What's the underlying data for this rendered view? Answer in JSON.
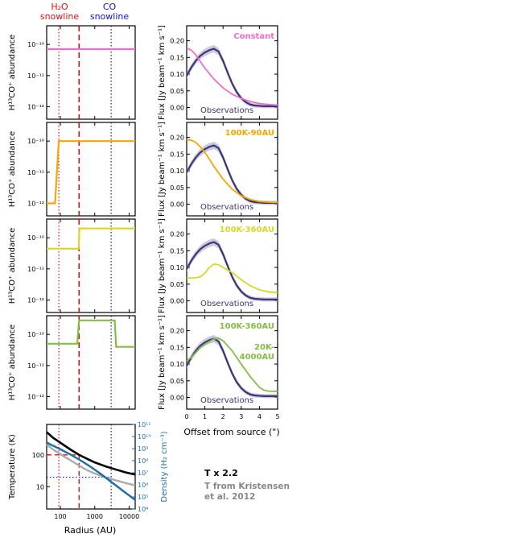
{
  "chart_data": {
    "type": "line",
    "header": {
      "h2o_label_top": "H₂O",
      "h2o_label_bottom": "snowline",
      "co_label_top": "CO",
      "co_label_bottom": "snowline",
      "h2o_color": "#dd1111",
      "co_color": "#1111cc"
    },
    "abundance_panels": {
      "ylabel": "H¹³CO⁺ abundance",
      "ylim_log10": [
        -12.4,
        -9.4
      ],
      "yticks": [
        {
          "v": -10,
          "label": "10⁻¹⁰"
        },
        {
          "v": -11,
          "label": "10⁻¹¹"
        },
        {
          "v": -12,
          "label": "10⁻¹²"
        }
      ],
      "xlim_au": [
        40,
        15000
      ],
      "h2o_snowline_au": 90,
      "co_snowline_au": 3000,
      "dashed_line_au": 350,
      "panels": [
        {
          "name": "Constant",
          "color": "#f06ec8",
          "x": [
            40,
            15000
          ],
          "y": [
            -10.15,
            -10.15
          ]
        },
        {
          "name": "100K-90AU",
          "color": "#f5a700",
          "x": [
            40,
            70,
            90,
            15000
          ],
          "y": [
            -12,
            -12,
            -10,
            -10
          ]
        },
        {
          "name": "100K-360AU",
          "color": "#d8d82a",
          "x": [
            40,
            340,
            360,
            15000
          ],
          "y": [
            -10.35,
            -10.35,
            -9.7,
            -9.7
          ]
        },
        {
          "name": "100K-360AU / 20K-4000AU",
          "color": "#82be45",
          "x": [
            40,
            310,
            350,
            3800,
            4200,
            15000
          ],
          "y": [
            -10.3,
            -10.3,
            -9.55,
            -9.55,
            -10.4,
            -10.4
          ]
        }
      ]
    },
    "flux_panels": {
      "ylabel": "Flux [Jy beam⁻¹ km s⁻¹]",
      "xlabel": "Offset from source (\")",
      "xlim": [
        0,
        5
      ],
      "ylim": [
        -0.035,
        0.245
      ],
      "xticks": [
        0,
        1,
        2,
        3,
        4,
        5
      ],
      "yticks": [
        0.0,
        0.05,
        0.1,
        0.15,
        0.2
      ],
      "ytick_labels": [
        "0.00",
        "0.05",
        "0.10",
        "0.15",
        "0.20"
      ],
      "observations": {
        "name": "Observations",
        "color": "#3b3675",
        "x": [
          0,
          0.25,
          0.5,
          0.75,
          1.0,
          1.25,
          1.5,
          1.75,
          2.0,
          2.25,
          2.5,
          2.75,
          3.0,
          3.25,
          3.5,
          3.75,
          4.0,
          4.25,
          4.5,
          4.75,
          5.0
        ],
        "y": [
          0.095,
          0.12,
          0.14,
          0.155,
          0.165,
          0.172,
          0.176,
          0.168,
          0.14,
          0.105,
          0.072,
          0.046,
          0.028,
          0.016,
          0.009,
          0.006,
          0.005,
          0.004,
          0.004,
          0.004,
          0.004
        ]
      },
      "panels": [
        {
          "label": "Constant",
          "color": "#f06ec8",
          "x": [
            0,
            0.25,
            0.5,
            0.75,
            1.0,
            1.5,
            2.0,
            2.5,
            3.0,
            3.5,
            4.0,
            4.5,
            5.0
          ],
          "y": [
            0.178,
            0.172,
            0.158,
            0.138,
            0.118,
            0.085,
            0.059,
            0.04,
            0.027,
            0.018,
            0.012,
            0.009,
            0.007
          ]
        },
        {
          "label": "100K-90AU",
          "color": "#f5a700",
          "x": [
            0,
            0.25,
            0.5,
            0.75,
            1.0,
            1.25,
            1.5,
            2.0,
            2.5,
            3.0,
            3.5,
            4.0,
            4.5,
            5.0
          ],
          "y": [
            0.193,
            0.192,
            0.185,
            0.172,
            0.155,
            0.135,
            0.113,
            0.075,
            0.045,
            0.025,
            0.014,
            0.008,
            0.006,
            0.005
          ]
        },
        {
          "label": "100K-360AU",
          "color": "#d8d82a",
          "x": [
            0,
            0.5,
            0.75,
            1.0,
            1.25,
            1.5,
            1.75,
            2.0,
            2.5,
            3.0,
            3.5,
            4.0,
            4.5,
            5.0
          ],
          "y": [
            0.068,
            0.069,
            0.072,
            0.083,
            0.1,
            0.11,
            0.108,
            0.1,
            0.085,
            0.063,
            0.045,
            0.033,
            0.027,
            0.024
          ]
        },
        {
          "label": "100K-360AU",
          "label2": "20K-",
          "label3": "4000AU",
          "color": "#82be45",
          "x": [
            0,
            0.25,
            0.5,
            0.75,
            1.0,
            1.25,
            1.5,
            1.75,
            2.0,
            2.5,
            3.0,
            3.5,
            4.0,
            4.25,
            4.5,
            5.0
          ],
          "y": [
            0.11,
            0.12,
            0.135,
            0.15,
            0.16,
            0.168,
            0.175,
            0.178,
            0.17,
            0.14,
            0.1,
            0.062,
            0.03,
            0.022,
            0.019,
            0.018
          ]
        }
      ]
    },
    "temperature_panel": {
      "ylabel": "Temperature (K)",
      "xlabel": "Radius (AU)",
      "xlim": [
        40,
        15000
      ],
      "ylim": [
        2,
        900
      ],
      "xticks": [
        {
          "v": 100,
          "label": "100"
        },
        {
          "v": 1000,
          "label": "1000"
        },
        {
          "v": 10000,
          "label": "10000"
        }
      ],
      "yticks": [
        {
          "v": 10,
          "label": "10"
        },
        {
          "v": 100,
          "label": "100"
        }
      ],
      "density_ylabel": "Density (H₂ cm⁻³)",
      "density_ylim_log10": [
        4,
        11
      ],
      "density_ticks": [
        {
          "v": 4,
          "label": "10⁴"
        },
        {
          "v": 5,
          "label": "10⁵"
        },
        {
          "v": 6,
          "label": "10⁶"
        },
        {
          "v": 7,
          "label": "10⁷"
        },
        {
          "v": 8,
          "label": "10⁸"
        },
        {
          "v": 9,
          "label": "10⁹"
        },
        {
          "v": 10,
          "label": "10¹⁰"
        },
        {
          "v": 11,
          "label": "10¹¹"
        }
      ],
      "series": [
        {
          "name": "T x 2.2",
          "color": "#000000",
          "x": [
            40,
            60,
            100,
            200,
            350,
            600,
            1000,
            2000,
            4000,
            8000,
            15000
          ],
          "y": [
            520,
            350,
            240,
            145,
            100,
            75,
            58,
            44,
            35,
            28,
            24
          ]
        },
        {
          "name": "T from Kristensen et al. 2012",
          "color": "#aaaaaa",
          "x": [
            40,
            60,
            100,
            200,
            350,
            600,
            1000,
            2000,
            4000,
            8000,
            15000
          ],
          "y": [
            210,
            150,
            105,
            67,
            46,
            33,
            26,
            20,
            16,
            13,
            11
          ]
        },
        {
          "name": "Density",
          "color": "#1f6fa4",
          "axis": "density",
          "x": [
            40,
            60,
            100,
            200,
            400,
            800,
            1500,
            3000,
            6000,
            15000
          ],
          "y_log10": [
            9.5,
            9.25,
            8.95,
            8.5,
            8.0,
            7.45,
            6.9,
            6.25,
            5.6,
            4.75
          ]
        }
      ],
      "h2o_ref": {
        "x": 90,
        "T": 100
      },
      "co_ref": {
        "x": 3000,
        "T": 20
      }
    },
    "legend": {
      "t_22": "T x 2.2",
      "t_kristensen_1": "T from Kristensen",
      "t_kristensen_2": "et al. 2012",
      "t_22_color": "#000000",
      "t_kristensen_color": "#888888"
    }
  }
}
